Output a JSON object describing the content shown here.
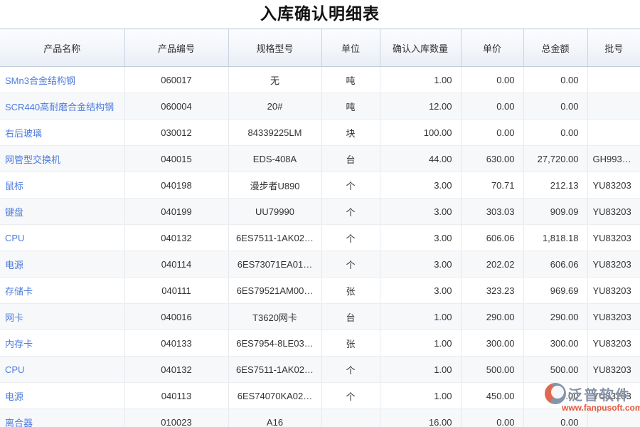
{
  "page": {
    "title": "入库确认明细表"
  },
  "table": {
    "columns": [
      {
        "key": "name",
        "label": "产品名称"
      },
      {
        "key": "code",
        "label": "产品编号"
      },
      {
        "key": "spec",
        "label": "规格型号"
      },
      {
        "key": "unit",
        "label": "单位"
      },
      {
        "key": "qty",
        "label": "确认入库数量"
      },
      {
        "key": "price",
        "label": "单价"
      },
      {
        "key": "amount",
        "label": "总金额"
      },
      {
        "key": "batch",
        "label": "批号"
      }
    ],
    "rows": [
      {
        "name": "SMn3合金结构钢",
        "code": "060017",
        "spec": "无",
        "unit": "吨",
        "qty": "1.00",
        "price": "0.00",
        "amount": "0.00",
        "batch": ""
      },
      {
        "name": "SCR440高耐磨合金结构钢",
        "code": "060004",
        "spec": "20#",
        "unit": "吨",
        "qty": "12.00",
        "price": "0.00",
        "amount": "0.00",
        "batch": ""
      },
      {
        "name": "右后玻璃",
        "code": "030012",
        "spec": "84339225LM",
        "unit": "块",
        "qty": "100.00",
        "price": "0.00",
        "amount": "0.00",
        "batch": ""
      },
      {
        "name": "网管型交换机",
        "code": "040015",
        "spec": "EDS-408A",
        "unit": "台",
        "qty": "44.00",
        "price": "630.00",
        "amount": "27,720.00",
        "batch": "GH993…"
      },
      {
        "name": "鼠标",
        "code": "040198",
        "spec": "漫步者U890",
        "unit": "个",
        "qty": "3.00",
        "price": "70.71",
        "amount": "212.13",
        "batch": "YU83203"
      },
      {
        "name": "键盘",
        "code": "040199",
        "spec": "UU79990",
        "unit": "个",
        "qty": "3.00",
        "price": "303.03",
        "amount": "909.09",
        "batch": "YU83203"
      },
      {
        "name": "CPU",
        "code": "040132",
        "spec": "6ES7511-1AK02…",
        "unit": "个",
        "qty": "3.00",
        "price": "606.06",
        "amount": "1,818.18",
        "batch": "YU83203"
      },
      {
        "name": "电源",
        "code": "040114",
        "spec": "6ES73071EA01…",
        "unit": "个",
        "qty": "3.00",
        "price": "202.02",
        "amount": "606.06",
        "batch": "YU83203"
      },
      {
        "name": "存储卡",
        "code": "040111",
        "spec": "6ES79521AM00…",
        "unit": "张",
        "qty": "3.00",
        "price": "323.23",
        "amount": "969.69",
        "batch": "YU83203"
      },
      {
        "name": "网卡",
        "code": "040016",
        "spec": "T3620网卡",
        "unit": "台",
        "qty": "1.00",
        "price": "290.00",
        "amount": "290.00",
        "batch": "YU83203"
      },
      {
        "name": "内存卡",
        "code": "040133",
        "spec": "6ES7954-8LE03…",
        "unit": "张",
        "qty": "1.00",
        "price": "300.00",
        "amount": "300.00",
        "batch": "YU83203"
      },
      {
        "name": "CPU",
        "code": "040132",
        "spec": "6ES7511-1AK02…",
        "unit": "个",
        "qty": "1.00",
        "price": "500.00",
        "amount": "500.00",
        "batch": "YU83203"
      },
      {
        "name": "电源",
        "code": "040113",
        "spec": "6ES74070KA02…",
        "unit": "个",
        "qty": "1.00",
        "price": "450.00",
        "amount": "450.00",
        "batch": "YU83203"
      },
      {
        "name": "离合器",
        "code": "010023",
        "spec": "A16",
        "unit": "",
        "qty": "16.00",
        "price": "0.00",
        "amount": "0.00",
        "batch": ""
      }
    ]
  },
  "watermark": {
    "brand": "泛普软件",
    "url": "www.fanpusoft.com"
  },
  "colors": {
    "link_blue": "#4d7bdd",
    "watermark_gray": "#8793a7",
    "watermark_orange": "#e4593e",
    "header_border": "#c9d3e0"
  }
}
